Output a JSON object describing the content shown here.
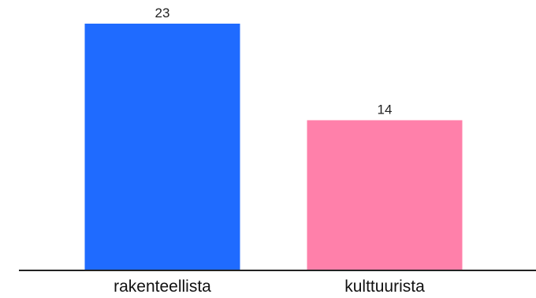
{
  "chart_data": {
    "type": "bar",
    "categories": [
      "rakenteellista",
      "kulttuurista"
    ],
    "values": [
      23,
      14
    ],
    "colors": [
      "#1f6bff",
      "#ff80aa"
    ],
    "axis_color": "#222222",
    "ylim": [
      0,
      25
    ],
    "grid": false,
    "legend": "none",
    "data_labels": true
  }
}
